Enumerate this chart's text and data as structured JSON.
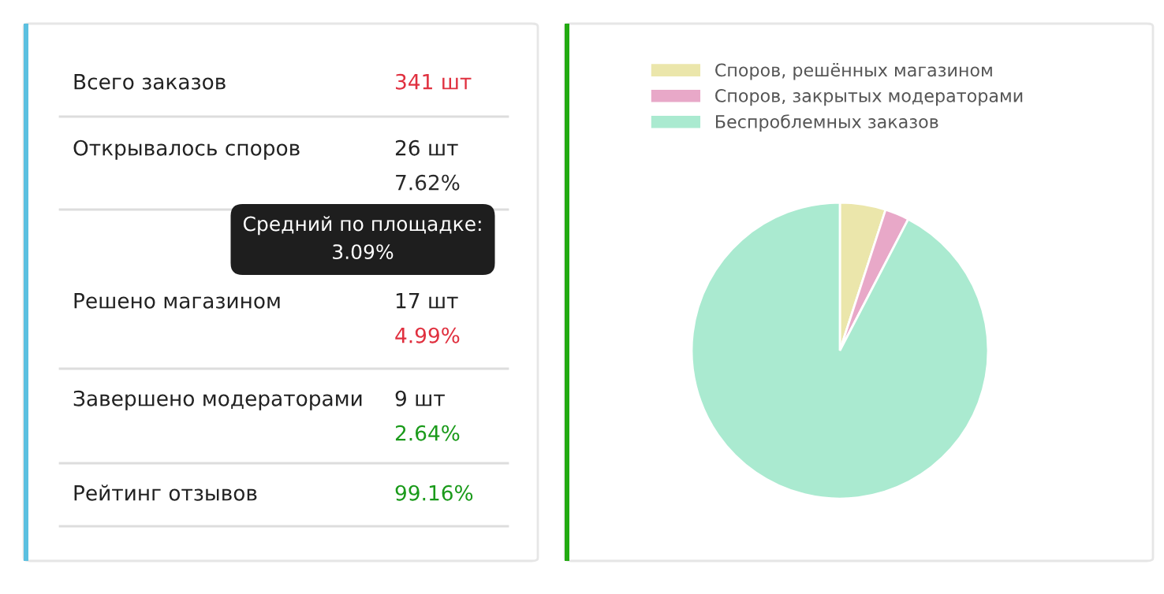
{
  "chart_data": [
    {
      "type": "other",
      "annotations": [
        "Всего заказов",
        "341 шт",
        "Открывалось споров",
        "26 шт",
        "7.62%",
        "Средний по площадке:\n3.09%",
        "Решено магазином",
        "17 шт",
        "4.99%",
        "Завершено модераторами",
        "9 шт",
        "2.64%",
        "Рейтинг отзывов",
        "99.16%"
      ],
      "colors": [
        "#222222",
        "#e0303f",
        "#222222",
        "#222222",
        "#2a2a2a",
        "#ffffff",
        "#222222",
        "#222222",
        "#e0303f",
        "#222222",
        "#222222",
        "#1a9a1a",
        "#222222",
        "#1a9a1a"
      ]
    },
    {
      "type": "pie",
      "categories": [
        "Споров, решённых магазином",
        "Споров, закрытых модераторами",
        "Беспроблемных заказов"
      ],
      "values": [
        4.99,
        2.64,
        92.37
      ],
      "colors": [
        "#ebe6ab",
        "#e8a8c8",
        "#aaead0"
      ],
      "legend": "top"
    }
  ]
}
